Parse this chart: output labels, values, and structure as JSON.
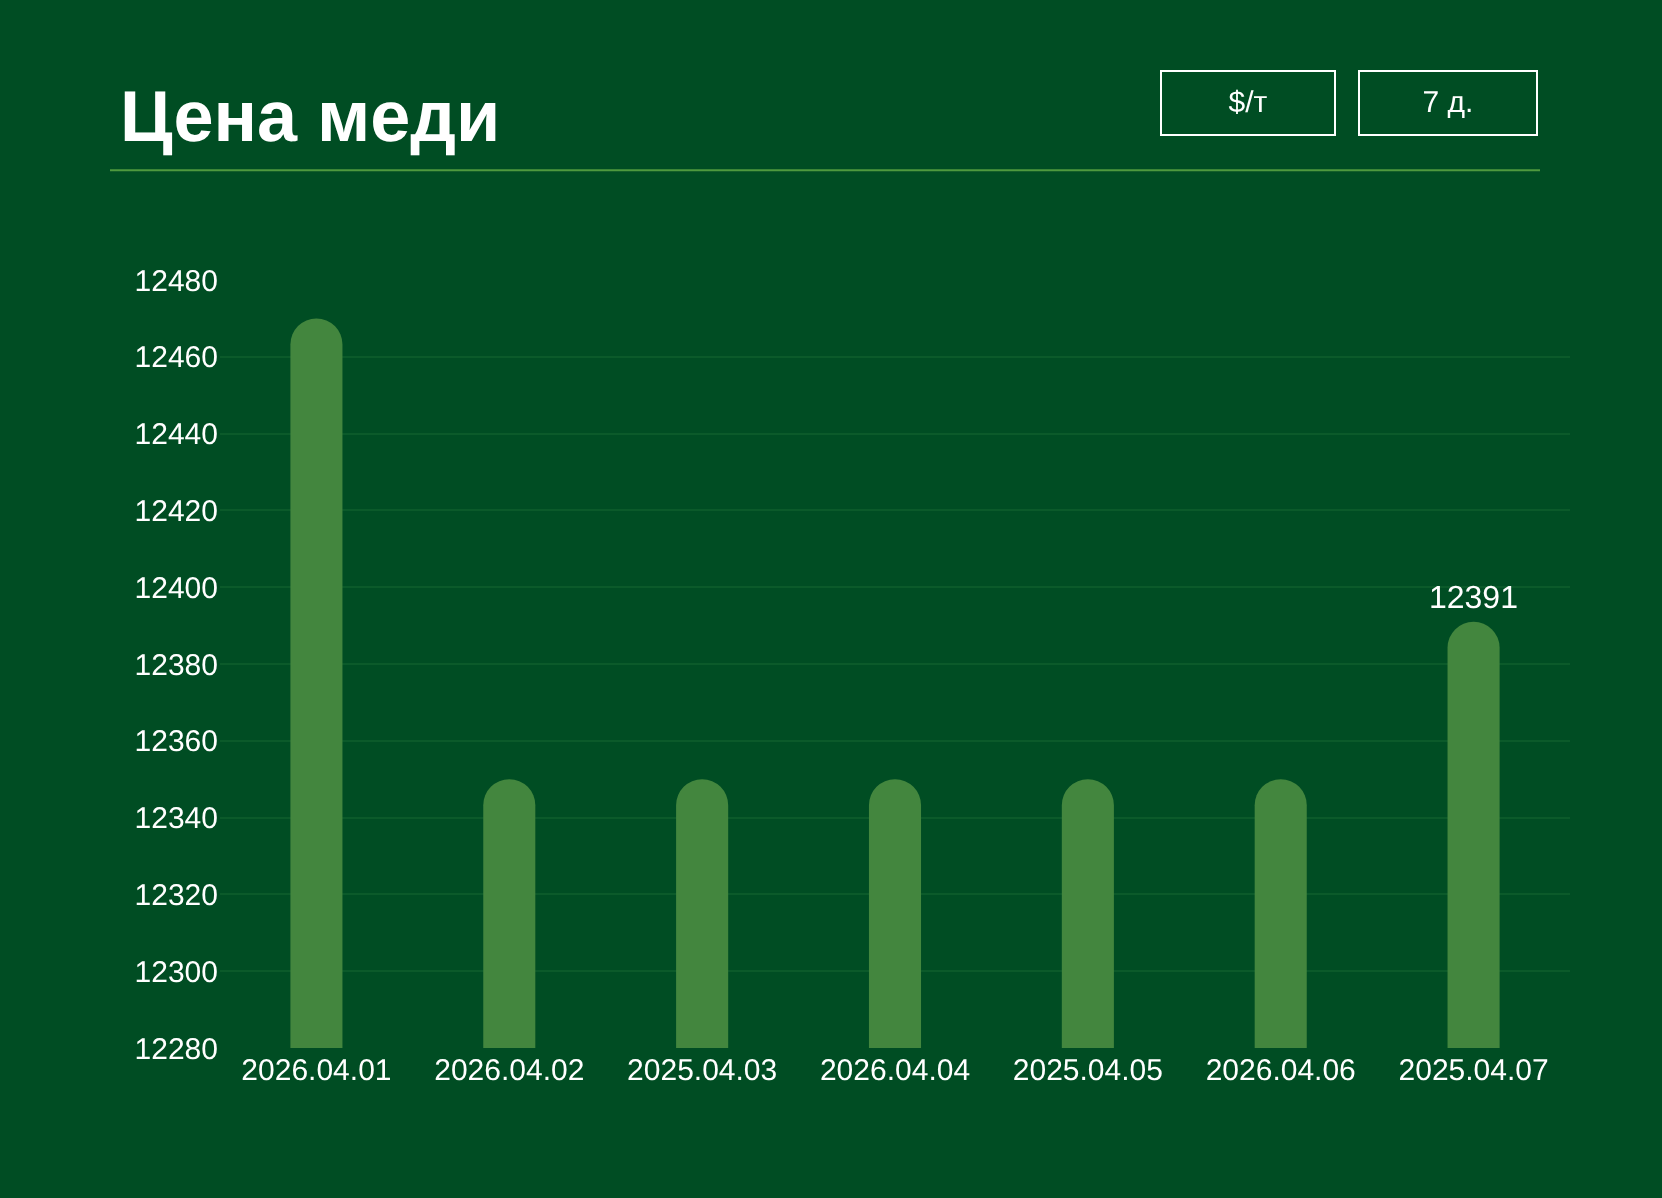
{
  "chart_data": {
    "type": "bar",
    "title": "Цена меди",
    "annotations": [
      "$/т",
      "7 д."
    ],
    "categories": [
      "2026.04.01",
      "2026.04.02",
      "2025.04.03",
      "2026.04.04",
      "2025.04.05",
      "2026.04.06",
      "2025.04.07"
    ],
    "values": [
      12470,
      12350,
      12350,
      12350,
      12350,
      12350,
      12391
    ],
    "value_labels": [
      null,
      null,
      null,
      null,
      null,
      null,
      "12391"
    ],
    "color": "#43863e",
    "ylim": [
      12280,
      12480
    ],
    "yticks": [
      12280,
      12300,
      12320,
      12340,
      12360,
      12380,
      12400,
      12420,
      12440,
      12460,
      12480
    ],
    "grid": "y",
    "legend": false
  }
}
